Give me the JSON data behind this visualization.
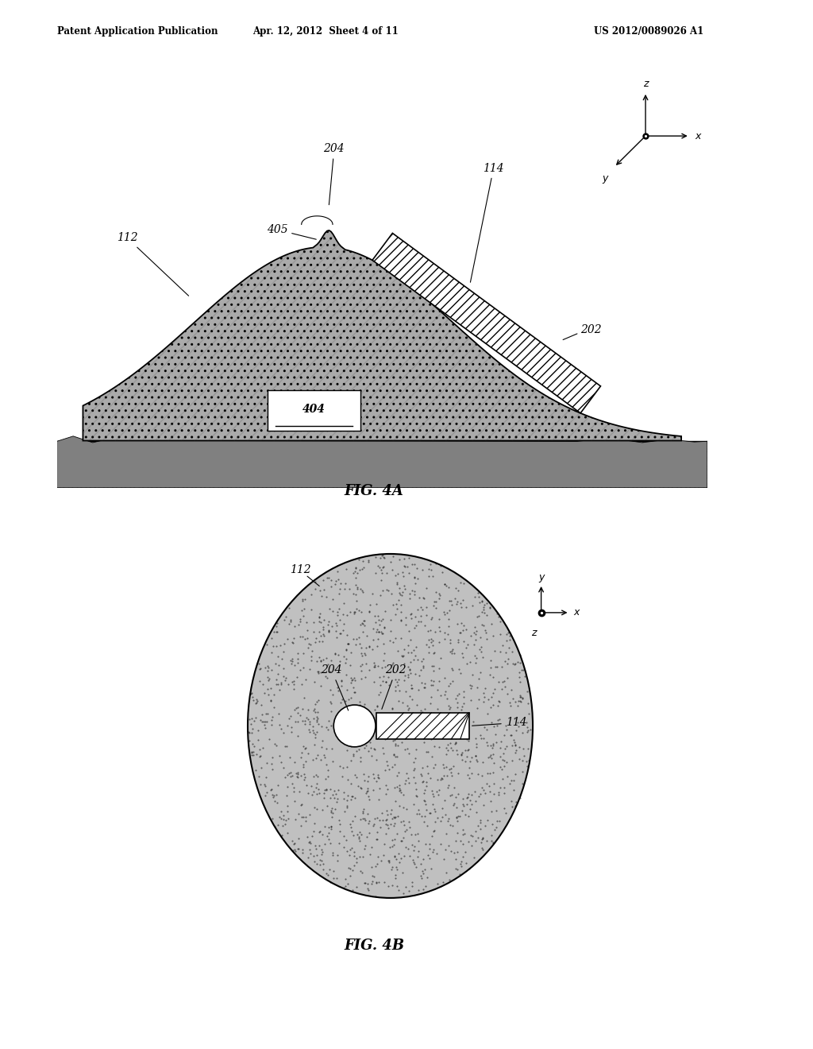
{
  "title_left": "Patent Application Publication",
  "title_mid": "Apr. 12, 2012  Sheet 4 of 11",
  "title_right": "US 2012/0089026 A1",
  "fig4a_label": "FIG. 4A",
  "fig4b_label": "FIG. 4B",
  "label_112_4a": "112",
  "label_204_4a": "204",
  "label_405_4a": "405",
  "label_114_4a": "114",
  "label_202_4a": "202",
  "label_404_4a": "404",
  "label_112_4b": "112",
  "label_204_4b": "204",
  "label_202_4b": "202",
  "label_114_4b": "114",
  "bg_color": "#ffffff"
}
